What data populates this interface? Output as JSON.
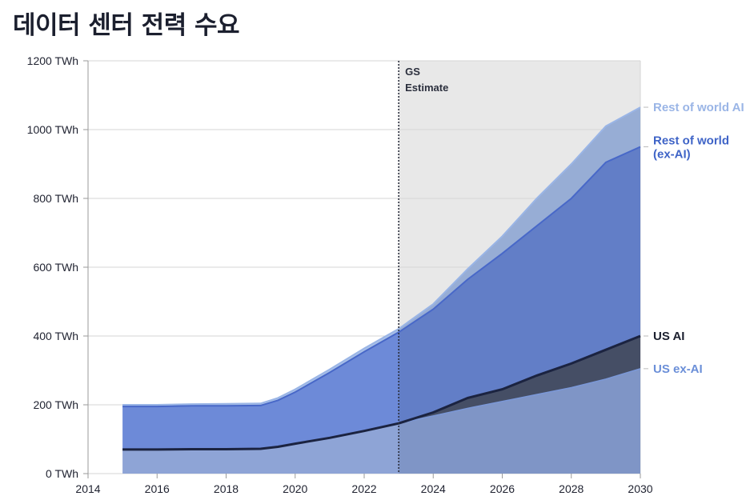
{
  "title": "데이터 센터 전력 수요",
  "chart_data": {
    "type": "area",
    "title": "데이터 센터 전력 수요",
    "stacked": true,
    "xlim": [
      2014,
      2030
    ],
    "ylim": [
      0,
      1200
    ],
    "x_ticks": [
      "2014",
      "2016",
      "2018",
      "2020",
      "2022",
      "2024",
      "2026",
      "2028",
      "2030"
    ],
    "y_ticks": [
      "0 TWh",
      "200 TWh",
      "400 TWh",
      "600 TWh",
      "800 TWh",
      "1000 TWh",
      "1200 TWh"
    ],
    "grid": true,
    "x": [
      2015,
      2016,
      2017,
      2018,
      2019,
      2019.5,
      2020,
      2021,
      2022,
      2023,
      2024,
      2025,
      2026,
      2027,
      2028,
      2029,
      2030
    ],
    "series": [
      {
        "name": "US ex-AI",
        "color": "#8ea4d6",
        "values": [
          70,
          70,
          71,
          71,
          72,
          78,
          87,
          104,
          124,
          146,
          168,
          190,
          210,
          230,
          250,
          275,
          305
        ]
      },
      {
        "name": "US AI",
        "color": "#4c5468",
        "values": [
          0,
          0,
          0,
          0,
          0,
          0,
          0,
          0,
          0,
          0,
          10,
          30,
          35,
          55,
          70,
          85,
          95
        ]
      },
      {
        "name": "Rest of world (ex-AI)",
        "color": "#6d8ad8",
        "values": [
          125,
          125,
          126,
          126,
          126,
          135,
          150,
          190,
          230,
          265,
          300,
          345,
          395,
          435,
          480,
          545,
          550
        ]
      },
      {
        "name": "Rest of world AI",
        "color": "#a9c0e8",
        "values": [
          5,
          5,
          5,
          6,
          6,
          7,
          8,
          9,
          10,
          10,
          15,
          30,
          50,
          80,
          100,
          105,
          115
        ]
      }
    ],
    "us_total_line": [
      70,
      70,
      71,
      71,
      72,
      78,
      87,
      104,
      124,
      146,
      178,
      220,
      245,
      285,
      320,
      360,
      400
    ],
    "annotation": {
      "x": 2023,
      "label_line1": "GS",
      "label_line2": "Estimate",
      "shaded_after": 2023
    },
    "end_labels": [
      {
        "text": "Rest of world AI",
        "value": 1065,
        "color": "#9ab5e6"
      },
      {
        "text": "Rest of world",
        "text2": "(ex-AI)",
        "value": 950,
        "color": "#3f64c7"
      },
      {
        "text": "US AI",
        "value": 400,
        "color": "#1b1f2e"
      },
      {
        "text": "US ex-AI",
        "value": 305,
        "color": "#6b8fd8"
      }
    ]
  }
}
